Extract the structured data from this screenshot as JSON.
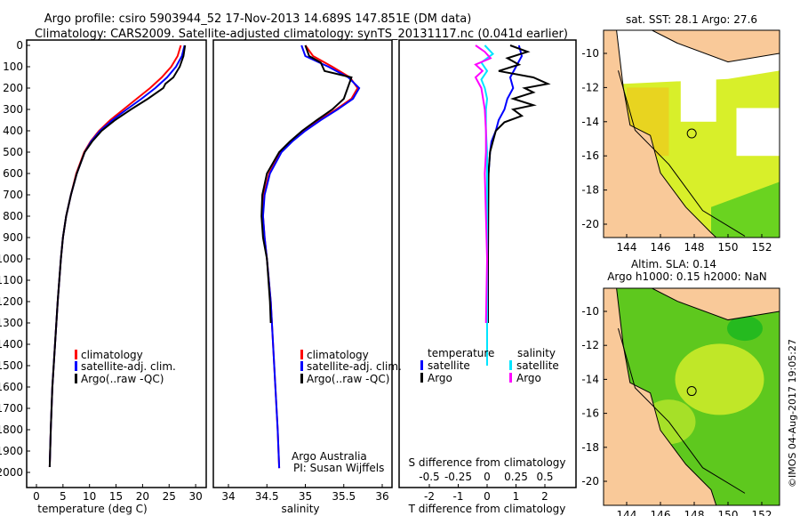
{
  "title": {
    "line1": "Argo profile: csiro 5903944_52 17-Nov-2013 14.689S 147.851E (DM data)",
    "line2": "Climatology: CARS2009. Satellite-adjusted climatology: synTS_20131117.nc (0.041d earlier)"
  },
  "depth_ticks": [
    0,
    100,
    200,
    300,
    400,
    500,
    600,
    700,
    800,
    900,
    1000,
    1100,
    1200,
    1300,
    1400,
    1500,
    1600,
    1700,
    1800,
    1900,
    2000
  ],
  "colors": {
    "climatology": "#ff0000",
    "satellite": "#0000ff",
    "argo": "#000000",
    "sal_satellite": "#00e5ff",
    "sal_argo": "#ff00ff",
    "land": "#f9c999"
  },
  "chart_data": [
    {
      "type": "line",
      "xlabel": "temperature (deg C)",
      "xticks": [
        0,
        5,
        10,
        15,
        20,
        25,
        30
      ],
      "xlim": [
        -1.5,
        31.5
      ],
      "ylim": [
        2000,
        0
      ],
      "legend": [
        "climatology",
        "satellite-adj. clim.",
        "Argo(..raw -QC)"
      ],
      "legend_placement": "bottom-center",
      "series": [
        {
          "name": "climatology",
          "depth": [
            0,
            50,
            100,
            150,
            200,
            250,
            300,
            350,
            400,
            450,
            500,
            600,
            700,
            800,
            900,
            1000,
            1200,
            1400,
            1600,
            1800,
            1975
          ],
          "values": [
            27.2,
            26.6,
            25.4,
            23.6,
            21.4,
            18.9,
            16.4,
            13.9,
            11.8,
            10.2,
            9.0,
            7.5,
            6.5,
            5.6,
            5.0,
            4.6,
            4.0,
            3.5,
            3.0,
            2.7,
            2.5
          ]
        },
        {
          "name": "satellite-adj. clim.",
          "depth": [
            0,
            50,
            100,
            150,
            200,
            250,
            300,
            350,
            400,
            450,
            500,
            600,
            700,
            800,
            900,
            1000,
            1200,
            1400,
            1600,
            1800,
            1975
          ],
          "values": [
            27.9,
            27.4,
            26.3,
            24.6,
            22.4,
            19.8,
            17.0,
            14.3,
            12.0,
            10.3,
            9.1,
            7.6,
            6.5,
            5.6,
            5.0,
            4.6,
            4.0,
            3.5,
            3.0,
            2.7,
            2.5
          ]
        },
        {
          "name": "Argo(..raw -QC)",
          "depth": [
            0,
            50,
            100,
            150,
            180,
            200,
            250,
            300,
            350,
            400,
            450,
            500,
            600,
            700,
            800,
            900,
            1000,
            1200,
            1400,
            1600,
            1800,
            1975
          ],
          "values": [
            28.0,
            27.7,
            27.0,
            25.8,
            24.3,
            23.9,
            21.0,
            17.8,
            14.8,
            12.3,
            10.5,
            9.1,
            7.6,
            6.5,
            5.6,
            5.0,
            4.6,
            4.0,
            3.5,
            3.0,
            2.7,
            2.5
          ]
        }
      ]
    },
    {
      "type": "line",
      "xlabel": "salinity",
      "xticks": [
        34,
        34.5,
        35,
        35.5,
        36
      ],
      "xlim": [
        33.9,
        36.2
      ],
      "ylim": [
        2000,
        0
      ],
      "legend": [
        "climatology",
        "satellite-adj. clim.",
        "Argo(..raw -QC)"
      ],
      "legend_placement": "bottom-center",
      "annotation": [
        "Argo Australia",
        "PI: Susan Wijffels"
      ],
      "series": [
        {
          "name": "climatology",
          "depth": [
            0,
            50,
            100,
            150,
            200,
            250,
            300,
            350,
            400,
            450,
            500,
            600,
            700,
            800,
            900,
            1000,
            1200,
            1400,
            1600,
            1800,
            1980
          ],
          "values": [
            35.0,
            35.1,
            35.35,
            35.58,
            35.68,
            35.6,
            35.4,
            35.18,
            34.98,
            34.82,
            34.68,
            34.53,
            34.46,
            34.45,
            34.47,
            34.5,
            34.55,
            34.58,
            34.61,
            34.64,
            34.66
          ]
        },
        {
          "name": "satellite-adj. clim.",
          "depth": [
            0,
            50,
            100,
            150,
            200,
            250,
            300,
            350,
            400,
            450,
            500,
            600,
            700,
            800,
            900,
            1000,
            1200,
            1400,
            1600,
            1800,
            1980
          ],
          "values": [
            34.95,
            35.0,
            35.3,
            35.56,
            35.7,
            35.62,
            35.42,
            35.2,
            35.0,
            34.83,
            34.69,
            34.54,
            34.47,
            34.45,
            34.47,
            34.5,
            34.55,
            34.58,
            34.61,
            34.64,
            34.66
          ]
        },
        {
          "name": "Argo(..raw -QC)",
          "depth": [
            0,
            50,
            80,
            120,
            150,
            200,
            250,
            300,
            350,
            400,
            450,
            500,
            600,
            700,
            800,
            900,
            1000,
            1200,
            1300
          ],
          "values": [
            35.0,
            35.05,
            35.2,
            35.25,
            35.6,
            35.55,
            35.5,
            35.35,
            35.15,
            34.96,
            34.8,
            34.66,
            34.5,
            34.44,
            34.43,
            34.45,
            34.5,
            34.54,
            34.55
          ]
        }
      ]
    },
    {
      "type": "line",
      "xlabel": "T difference from climatology",
      "x2label": "S difference from climatology",
      "xticks": [
        -2,
        -1,
        0,
        1,
        2
      ],
      "x2ticks": [
        -0.5,
        -0.25,
        0,
        0.25,
        0.5
      ],
      "xlim": [
        -3,
        3
      ],
      "x2lim": [
        -0.75,
        0.75
      ],
      "ylim": [
        2000,
        0
      ],
      "legend_titles": [
        "temperature",
        "salinity"
      ],
      "legend": [
        "satellite",
        "Argo",
        "satellite",
        "Argo"
      ],
      "series": [
        {
          "name": "temperature satellite",
          "axis": "T",
          "depth": [
            0,
            50,
            100,
            150,
            200,
            250,
            300,
            350,
            400,
            450,
            500,
            600,
            800,
            1000,
            1300
          ],
          "values": [
            1.1,
            1.2,
            1.0,
            0.8,
            0.9,
            0.7,
            0.6,
            0.4,
            0.3,
            0.15,
            0.1,
            0.05,
            0.02,
            0.01,
            0.0
          ]
        },
        {
          "name": "temperature Argo",
          "axis": "T",
          "depth": [
            0,
            30,
            60,
            90,
            120,
            150,
            180,
            200,
            220,
            250,
            280,
            300,
            330,
            360,
            400,
            450,
            500,
            600,
            800,
            1000,
            1300
          ],
          "values": [
            0.8,
            1.4,
            0.7,
            1.1,
            0.4,
            1.6,
            2.1,
            1.3,
            1.6,
            0.9,
            1.6,
            0.9,
            1.2,
            0.6,
            0.3,
            0.2,
            0.1,
            0.05,
            0.04,
            0.03,
            0.03
          ]
        },
        {
          "name": "salinity satellite",
          "axis": "S",
          "depth": [
            0,
            40,
            80,
            120,
            160,
            200,
            250,
            300,
            400,
            500,
            700,
            1000,
            1500
          ],
          "values": [
            -0.02,
            0.05,
            -0.05,
            0.0,
            -0.05,
            -0.02,
            0.0,
            -0.01,
            -0.01,
            0.0,
            0.0,
            0.0,
            0.0
          ]
        },
        {
          "name": "salinity Argo",
          "axis": "S",
          "depth": [
            0,
            30,
            60,
            90,
            120,
            150,
            200,
            300,
            400,
            500,
            600,
            800,
            1000,
            1300
          ],
          "values": [
            -0.1,
            -0.02,
            0.03,
            -0.1,
            -0.04,
            -0.1,
            -0.05,
            -0.02,
            -0.01,
            -0.01,
            -0.02,
            -0.01,
            0.0,
            -0.01
          ]
        }
      ]
    }
  ],
  "maps": [
    {
      "title": "sat. SST: 28.1 Argo: 27.6",
      "xticks": [
        144,
        146,
        148,
        150,
        152
      ],
      "yticks": [
        -10,
        -12,
        -14,
        -16,
        -18,
        -20
      ]
    },
    {
      "title_line1": "Altim. SLA: 0.14",
      "title_line2": "Argo h1000: 0.15 h2000: NaN",
      "xticks": [
        144,
        146,
        148,
        150,
        152
      ],
      "yticks": [
        -10,
        -12,
        -14,
        -16,
        -18,
        -20
      ]
    }
  ],
  "profile_position": {
    "lon": 147.851,
    "lat": -14.689
  },
  "credit": "©IMOS 04-Aug-2017 19:05:27"
}
